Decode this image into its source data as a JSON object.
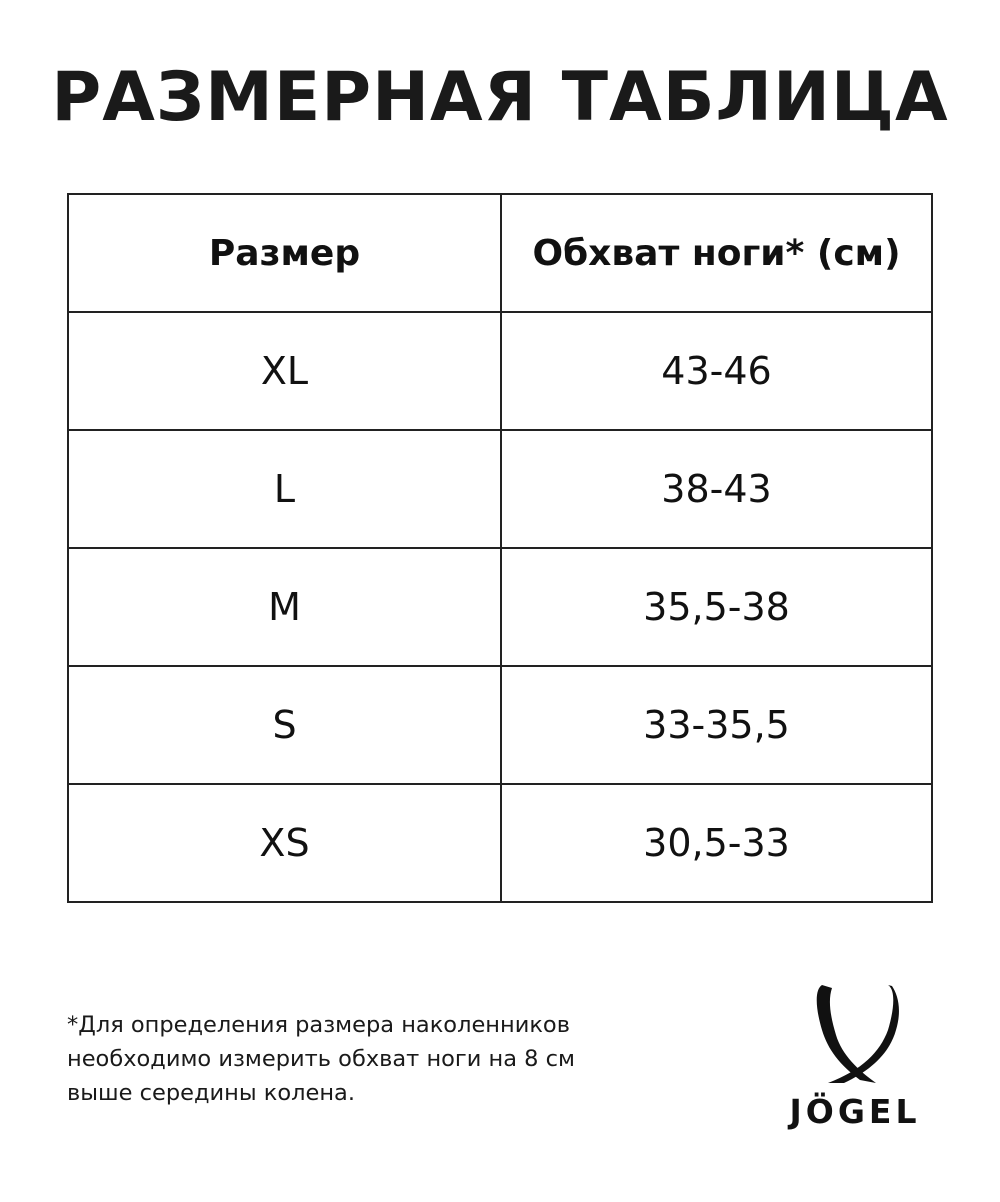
{
  "title": "РАЗМЕРНАЯ ТАБЛИЦА",
  "table": {
    "headers": [
      "Размер",
      "Обхват ноги* (см)"
    ],
    "rows": [
      [
        "XL",
        "43-46"
      ],
      [
        "L",
        "38-43"
      ],
      [
        "M",
        "35,5-38"
      ],
      [
        "S",
        "33-35,5"
      ],
      [
        "XS",
        "30,5-33"
      ]
    ]
  },
  "footnote": "*Для определения размера наколенников необходимо измерить обхват ноги на 8 см выше середины колена.",
  "logo": {
    "text": "JÖGEL"
  }
}
